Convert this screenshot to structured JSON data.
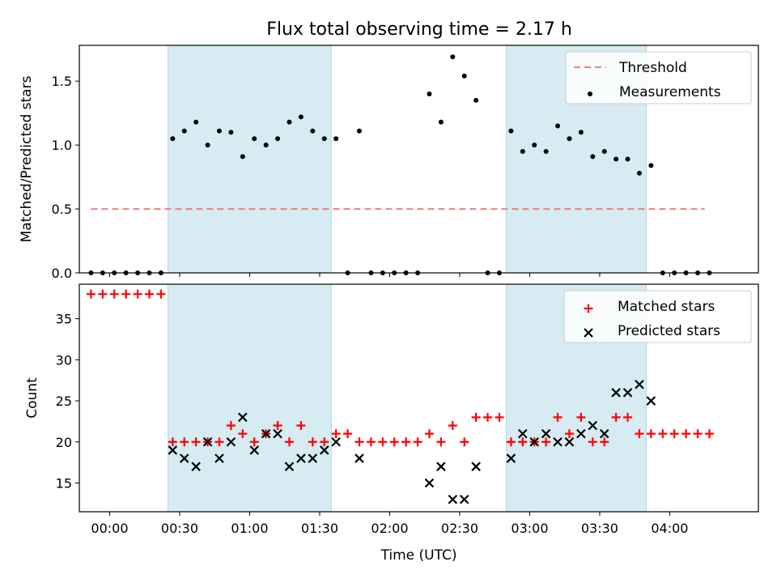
{
  "figure_title": "Flux total observing time = 2.17 h",
  "colors": {
    "threshold": "#f08080",
    "measurement": "#000000",
    "matched": "#ff0000",
    "predicted": "#000000",
    "observing_band": "#add8e6"
  },
  "chart_data": [
    {
      "type": "scatter",
      "title": "Flux total observing time = 2.17 h",
      "xlabel": "",
      "ylabel": "Matched/Predicted stars",
      "x_axis": "time (UTC, HH:MM; times after 24:00 fall on the next day)",
      "xlim": [
        "23:47",
        "04:38"
      ],
      "ylim": [
        0,
        1.78
      ],
      "yticks": [
        "0.0",
        "0.5",
        "1.0",
        "1.5"
      ],
      "legend_position": "upper right",
      "shaded_intervals": [
        [
          "00:25",
          "01:35"
        ],
        [
          "02:50",
          "03:50"
        ]
      ],
      "series": [
        {
          "name": "Threshold",
          "style": "dashed-line",
          "x": [
            "23:52",
            "04:15"
          ],
          "y": [
            0.5,
            0.5
          ]
        },
        {
          "name": "Measurements",
          "style": "dot",
          "points": [
            [
              "23:52",
              0
            ],
            [
              "23:57",
              0
            ],
            [
              "00:02",
              0
            ],
            [
              "00:07",
              0
            ],
            [
              "00:12",
              0
            ],
            [
              "00:17",
              0
            ],
            [
              "00:22",
              0
            ],
            [
              "00:27",
              1.05
            ],
            [
              "00:32",
              1.11
            ],
            [
              "00:37",
              1.18
            ],
            [
              "00:42",
              1.0
            ],
            [
              "00:47",
              1.11
            ],
            [
              "00:52",
              1.1
            ],
            [
              "00:57",
              0.91
            ],
            [
              "01:02",
              1.05
            ],
            [
              "01:07",
              1.0
            ],
            [
              "01:12",
              1.05
            ],
            [
              "01:17",
              1.18
            ],
            [
              "01:22",
              1.22
            ],
            [
              "01:27",
              1.11
            ],
            [
              "01:32",
              1.05
            ],
            [
              "01:37",
              1.05
            ],
            [
              "01:42",
              0
            ],
            [
              "01:47",
              1.11
            ],
            [
              "01:52",
              0
            ],
            [
              "01:57",
              0
            ],
            [
              "02:02",
              0
            ],
            [
              "02:07",
              0
            ],
            [
              "02:12",
              0
            ],
            [
              "02:17",
              1.4
            ],
            [
              "02:22",
              1.18
            ],
            [
              "02:27",
              1.69
            ],
            [
              "02:32",
              1.54
            ],
            [
              "02:37",
              1.35
            ],
            [
              "02:42",
              0
            ],
            [
              "02:47",
              0
            ],
            [
              "02:52",
              1.11
            ],
            [
              "02:57",
              0.95
            ],
            [
              "03:02",
              1.0
            ],
            [
              "03:07",
              0.95
            ],
            [
              "03:12",
              1.15
            ],
            [
              "03:17",
              1.05
            ],
            [
              "03:22",
              1.1
            ],
            [
              "03:27",
              0.91
            ],
            [
              "03:32",
              0.95
            ],
            [
              "03:37",
              0.89
            ],
            [
              "03:42",
              0.89
            ],
            [
              "03:47",
              0.78
            ],
            [
              "03:52",
              0.84
            ],
            [
              "03:57",
              0
            ],
            [
              "04:02",
              0
            ],
            [
              "04:07",
              0
            ],
            [
              "04:12",
              0
            ],
            [
              "04:17",
              0
            ]
          ]
        }
      ]
    },
    {
      "type": "scatter",
      "title": "",
      "xlabel": "Time (UTC)",
      "ylabel": "Count",
      "xlim": [
        "23:47",
        "04:38"
      ],
      "xticks": [
        "00:00",
        "00:30",
        "01:00",
        "01:30",
        "02:00",
        "02:30",
        "03:00",
        "03:30",
        "04:00"
      ],
      "ylim": [
        11.5,
        39.2
      ],
      "yticks": [
        15,
        20,
        25,
        30,
        35
      ],
      "legend_position": "upper right",
      "shaded_intervals": [
        [
          "00:25",
          "01:35"
        ],
        [
          "02:50",
          "03:50"
        ]
      ],
      "series": [
        {
          "name": "Matched stars",
          "marker": "plus",
          "points": [
            [
              "23:52",
              38
            ],
            [
              "23:57",
              38
            ],
            [
              "00:02",
              38
            ],
            [
              "00:07",
              38
            ],
            [
              "00:12",
              38
            ],
            [
              "00:17",
              38
            ],
            [
              "00:22",
              38
            ],
            [
              "00:27",
              20
            ],
            [
              "00:32",
              20
            ],
            [
              "00:37",
              20
            ],
            [
              "00:42",
              20
            ],
            [
              "00:47",
              20
            ],
            [
              "00:52",
              22
            ],
            [
              "00:57",
              21
            ],
            [
              "01:02",
              20
            ],
            [
              "01:07",
              21
            ],
            [
              "01:12",
              22
            ],
            [
              "01:17",
              20
            ],
            [
              "01:22",
              22
            ],
            [
              "01:27",
              20
            ],
            [
              "01:32",
              20
            ],
            [
              "01:37",
              21
            ],
            [
              "01:42",
              21
            ],
            [
              "01:47",
              20
            ],
            [
              "01:52",
              20
            ],
            [
              "01:57",
              20
            ],
            [
              "02:02",
              20
            ],
            [
              "02:07",
              20
            ],
            [
              "02:12",
              20
            ],
            [
              "02:17",
              21
            ],
            [
              "02:22",
              20
            ],
            [
              "02:27",
              22
            ],
            [
              "02:32",
              20
            ],
            [
              "02:37",
              23
            ],
            [
              "02:42",
              23
            ],
            [
              "02:47",
              23
            ],
            [
              "02:52",
              20
            ],
            [
              "02:57",
              20
            ],
            [
              "03:02",
              20
            ],
            [
              "03:07",
              20
            ],
            [
              "03:12",
              23
            ],
            [
              "03:17",
              21
            ],
            [
              "03:22",
              23
            ],
            [
              "03:27",
              20
            ],
            [
              "03:32",
              20
            ],
            [
              "03:37",
              23
            ],
            [
              "03:42",
              23
            ],
            [
              "03:47",
              21
            ],
            [
              "03:52",
              21
            ],
            [
              "03:57",
              21
            ],
            [
              "04:02",
              21
            ],
            [
              "04:07",
              21
            ],
            [
              "04:12",
              21
            ],
            [
              "04:17",
              21
            ]
          ]
        },
        {
          "name": "Predicted stars",
          "marker": "x",
          "points": [
            [
              "00:27",
              19
            ],
            [
              "00:32",
              18
            ],
            [
              "00:37",
              17
            ],
            [
              "00:42",
              20
            ],
            [
              "00:47",
              18
            ],
            [
              "00:52",
              20
            ],
            [
              "00:57",
              23
            ],
            [
              "01:02",
              19
            ],
            [
              "01:07",
              21
            ],
            [
              "01:12",
              21
            ],
            [
              "01:17",
              17
            ],
            [
              "01:22",
              18
            ],
            [
              "01:27",
              18
            ],
            [
              "01:32",
              19
            ],
            [
              "01:37",
              20
            ],
            [
              "01:47",
              18
            ],
            [
              "02:17",
              15
            ],
            [
              "02:22",
              17
            ],
            [
              "02:27",
              13
            ],
            [
              "02:32",
              13
            ],
            [
              "02:37",
              17
            ],
            [
              "02:52",
              18
            ],
            [
              "02:57",
              21
            ],
            [
              "03:02",
              20
            ],
            [
              "03:07",
              21
            ],
            [
              "03:12",
              20
            ],
            [
              "03:17",
              20
            ],
            [
              "03:22",
              21
            ],
            [
              "03:27",
              22
            ],
            [
              "03:32",
              21
            ],
            [
              "03:37",
              26
            ],
            [
              "03:42",
              26
            ],
            [
              "03:47",
              27
            ],
            [
              "03:52",
              25
            ]
          ]
        }
      ]
    }
  ]
}
